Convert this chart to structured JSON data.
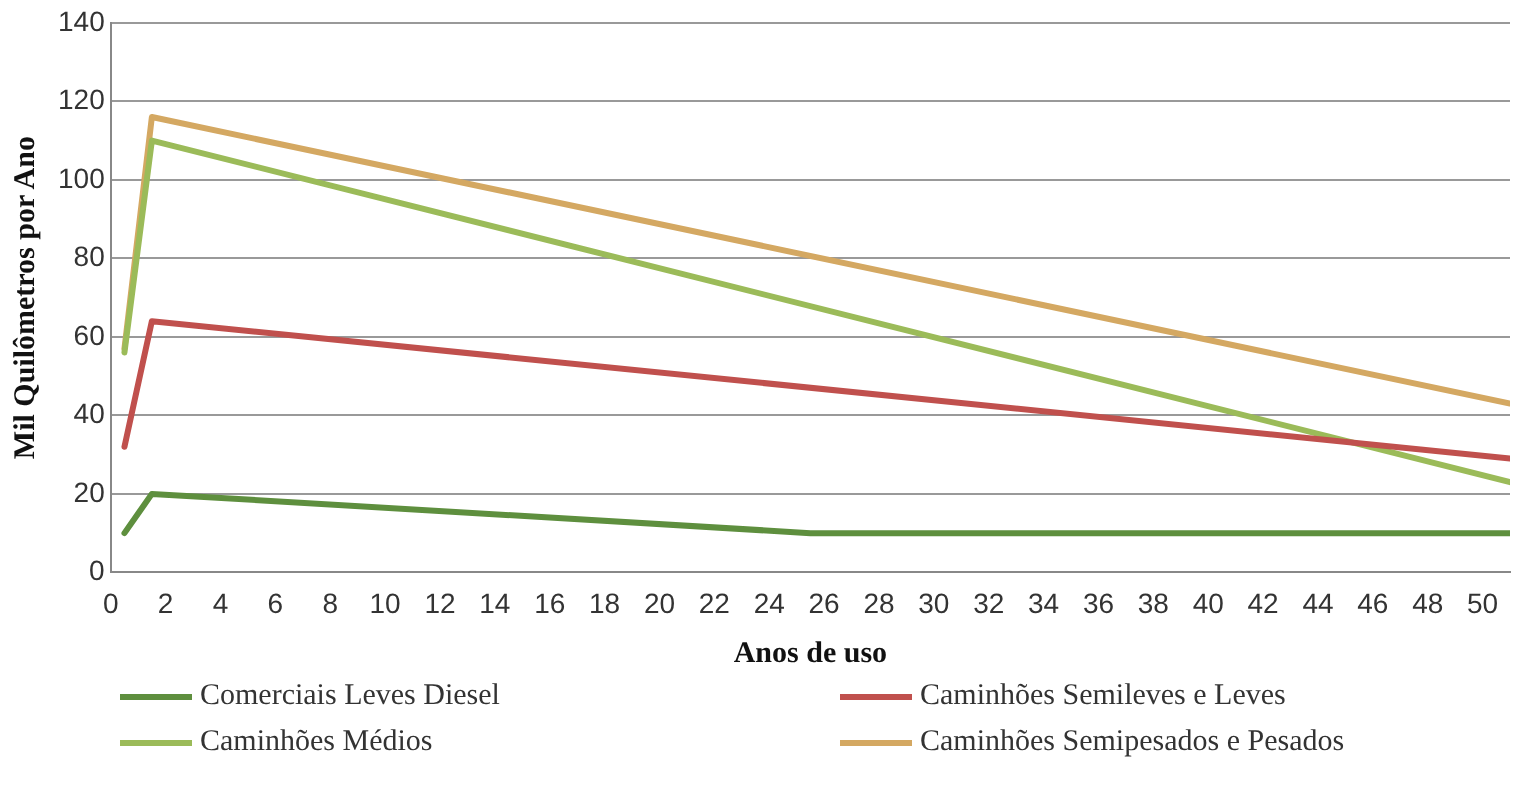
{
  "chart_data": {
    "type": "line",
    "xlabel": "Anos de uso",
    "ylabel": "Mil Quilômetros por Ano",
    "xlim": [
      0,
      51
    ],
    "xticks": [
      0,
      2,
      4,
      6,
      8,
      10,
      12,
      14,
      16,
      18,
      20,
      22,
      24,
      26,
      28,
      30,
      32,
      34,
      36,
      38,
      40,
      42,
      44,
      46,
      48,
      50
    ],
    "ylim": [
      0,
      140
    ],
    "yticks": [
      0,
      20,
      40,
      60,
      80,
      100,
      120,
      140
    ],
    "grid": "y",
    "legend": "bottom",
    "marker": "none",
    "line_style": "solid",
    "series": [
      {
        "name": "Comerciais Leves Diesel",
        "color": "#5e8f3e",
        "x": [
          0.5,
          1.5,
          25.5,
          51
        ],
        "values": [
          10,
          20,
          10,
          10
        ]
      },
      {
        "name": "Caminhões Semileves e Leves",
        "color": "#c0504d",
        "x": [
          0.5,
          1.5,
          51
        ],
        "values": [
          32,
          64,
          29
        ]
      },
      {
        "name": "Caminhões Médios",
        "color": "#9bbb59",
        "x": [
          0.5,
          1.5,
          51
        ],
        "values": [
          56,
          110,
          23
        ]
      },
      {
        "name": "Caminhões Semipesados e Pesados",
        "color": "#d4a862",
        "x": [
          0.5,
          1.5,
          51
        ],
        "values": [
          57,
          116,
          43
        ]
      }
    ]
  }
}
